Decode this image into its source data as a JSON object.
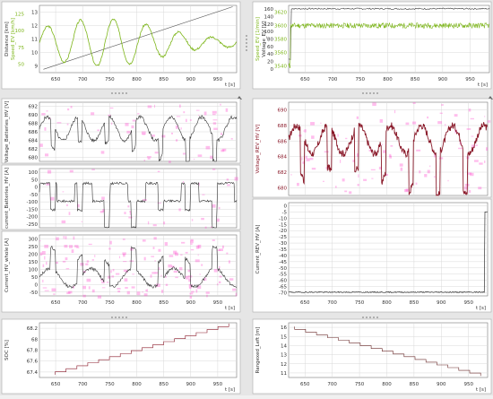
{
  "colors": {
    "frame": "#a9a9a9",
    "grid": "#d8d8d8",
    "panel_bg": "#ffffff",
    "splitter_bg": "#e6e6e6",
    "green": "#7cb518",
    "dark": "#303030",
    "red_dark": "#8a1a2a",
    "pink": "#ff44cc"
  },
  "icons": {
    "splitter_grip": "grip-dots-icon",
    "collapse": "triangle-up-icon"
  },
  "panels": [
    {
      "id": "distance-speed",
      "x_label": "t [s]",
      "x_ticks": [
        "650",
        "700",
        "750",
        "800",
        "850",
        "900",
        "950"
      ],
      "axes": [
        {
          "label": "Distance [km]",
          "ticks": [
            "9",
            "10",
            "11",
            "12",
            "13"
          ],
          "color": "#303030"
        },
        {
          "label": "Speed_EV [km/h]",
          "ticks": [
            "50",
            "75",
            "100",
            "125"
          ],
          "color": "#7cb518"
        }
      ]
    },
    {
      "id": "speed-voltage",
      "x_label": "t [s]",
      "x_ticks": [
        "650",
        "700",
        "750",
        "800",
        "850",
        "900",
        "950"
      ],
      "axes": [
        {
          "label": "Speed_EV [1/min]",
          "ticks": [
            "3540",
            "3560",
            "3580",
            "3600",
            "3620"
          ],
          "color": "#7cb518"
        },
        {
          "label": "Voltage_EV [V]",
          "ticks": [
            "0",
            "20",
            "40",
            "60",
            "80",
            "100",
            "120",
            "140",
            "160"
          ],
          "color": "#303030"
        }
      ]
    },
    {
      "id": "voltage-battery",
      "axes": [
        {
          "label": "Voltage_Batteries_HV [V]",
          "ticks": [
            "680",
            "682",
            "684",
            "686",
            "688",
            "690",
            "692"
          ],
          "color": "#303030"
        }
      ]
    },
    {
      "id": "current-battery",
      "axes": [
        {
          "label": "current_Batteries_HV [A]",
          "ticks": [
            "-250",
            "-200",
            "-150",
            "-100",
            "-50",
            "0",
            "50",
            "100"
          ],
          "color": "#303030"
        }
      ]
    },
    {
      "id": "current-inverter",
      "x_label": "t [s]",
      "x_ticks": [
        "650",
        "700",
        "750",
        "800",
        "850",
        "900",
        "950"
      ],
      "axes": [
        {
          "label": "Current_HV_whole [A]",
          "ticks": [
            "-50",
            "0",
            "50",
            "100",
            "150",
            "200",
            "250",
            "300"
          ],
          "color": "#303030"
        }
      ]
    },
    {
      "id": "voltage-rev",
      "axes": [
        {
          "label": "Voltage_REV_HV [V]",
          "ticks": [
            "680",
            "682",
            "684",
            "686",
            "688",
            "690"
          ],
          "color": "#8a1a2a"
        }
      ]
    },
    {
      "id": "current-rev",
      "x_label": "t [s]",
      "x_ticks": [
        "650",
        "700",
        "750",
        "800",
        "850",
        "900",
        "950"
      ],
      "axes": [
        {
          "label": "Current_REV_HV [A]",
          "ticks": [
            "-70",
            "-65",
            "-60",
            "-55",
            "-50",
            "-45",
            "-40",
            "-35",
            "-30",
            "-25",
            "-20",
            "-15",
            "-10",
            "-5",
            "0"
          ],
          "color": "#303030"
        }
      ]
    },
    {
      "id": "soc",
      "x_label": "t [s]",
      "x_ticks": [
        "650",
        "700",
        "750",
        "800",
        "850",
        "900",
        "950"
      ],
      "axes": [
        {
          "label": "SOC [%]",
          "ticks": [
            "67.4",
            "67.6",
            "67.8",
            "68",
            "68.2"
          ],
          "color": "#303030"
        }
      ]
    },
    {
      "id": "range",
      "x_label": "t [s]",
      "x_ticks": [
        "650",
        "700",
        "750",
        "800",
        "850",
        "900",
        "950"
      ],
      "axes": [
        {
          "label": "Rangexed_Left [m]",
          "ticks": [
            "11",
            "12",
            "13",
            "14",
            "15",
            "16"
          ],
          "color": "#303030"
        }
      ]
    }
  ]
}
